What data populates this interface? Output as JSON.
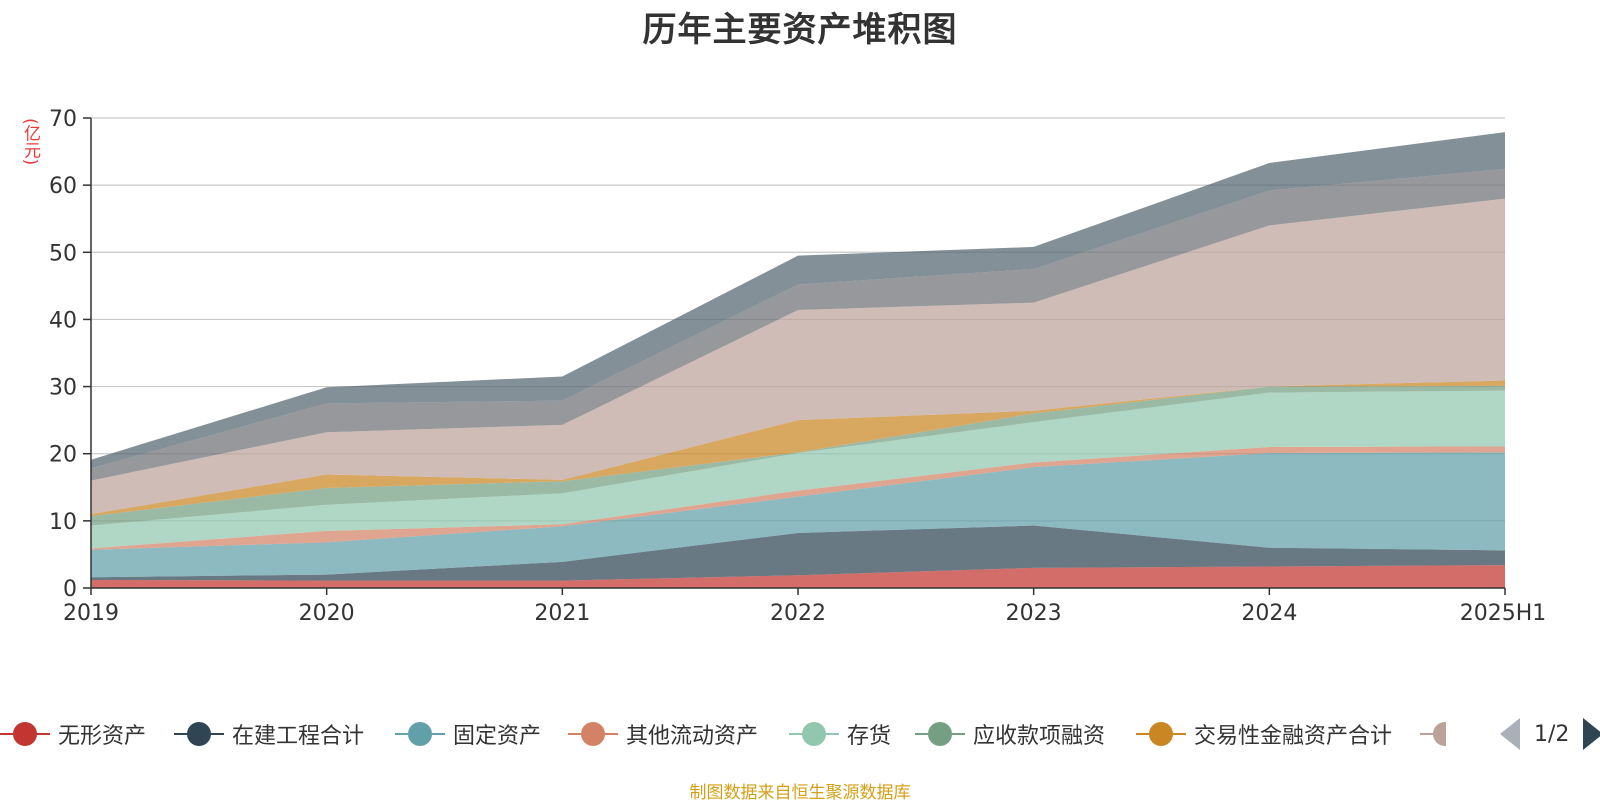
{
  "title": "历年主要资产堆积图",
  "source_note": "制图数据来自恒生聚源数据库",
  "pager": {
    "text": "1/2"
  },
  "chart_data": {
    "type": "area",
    "stacked": true,
    "title": "历年主要资产堆积图",
    "ylabel": "(亿元)",
    "x": [
      "2019",
      "2020",
      "2021",
      "2022",
      "2023",
      "2024",
      "2025H1"
    ],
    "ylim": [
      0,
      70
    ],
    "yticks": [
      0,
      10,
      20,
      30,
      40,
      50,
      60,
      70
    ],
    "grid": true,
    "legend_position": "bottom",
    "series": [
      {
        "name": "无形资产",
        "color": "#c23531",
        "values": [
          1.2,
          1.1,
          1.1,
          1.9,
          3.0,
          3.2,
          3.4
        ]
      },
      {
        "name": "在建工程合计",
        "color": "#2f4554",
        "values": [
          0.4,
          0.9,
          2.8,
          6.3,
          6.3,
          2.8,
          2.2
        ]
      },
      {
        "name": "固定资产",
        "color": "#61a0a8",
        "values": [
          4.1,
          4.8,
          5.3,
          5.4,
          8.7,
          14.1,
          14.6
        ]
      },
      {
        "name": "其他流动资产",
        "color": "#d48265",
        "values": [
          0.2,
          1.7,
          0.3,
          0.9,
          0.7,
          0.9,
          0.9
        ]
      },
      {
        "name": "存货",
        "color": "#91c7ae",
        "values": [
          3.4,
          3.9,
          4.6,
          5.6,
          6.0,
          8.1,
          8.3
        ]
      },
      {
        "name": "应收款项融资",
        "color": "#749f83",
        "values": [
          1.4,
          2.5,
          1.8,
          0.1,
          1.3,
          0.9,
          0.7
        ]
      },
      {
        "name": "交易性金融资产合计",
        "color": "#ca8622",
        "values": [
          0.3,
          2.0,
          0.2,
          4.8,
          0.4,
          0.0,
          0.8
        ]
      },
      {
        "name": "",
        "color": "#bda29a",
        "values": [
          5.0,
          6.3,
          8.2,
          16.4,
          16.1,
          24.0,
          27.1
        ]
      },
      {
        "name": "",
        "color": "#6e7074",
        "values": [
          1.8,
          4.3,
          3.6,
          3.8,
          5.0,
          5.2,
          4.4
        ]
      },
      {
        "name": "",
        "color": "#546570",
        "values": [
          1.3,
          2.4,
          3.6,
          4.3,
          3.3,
          4.1,
          5.5
        ]
      }
    ]
  }
}
